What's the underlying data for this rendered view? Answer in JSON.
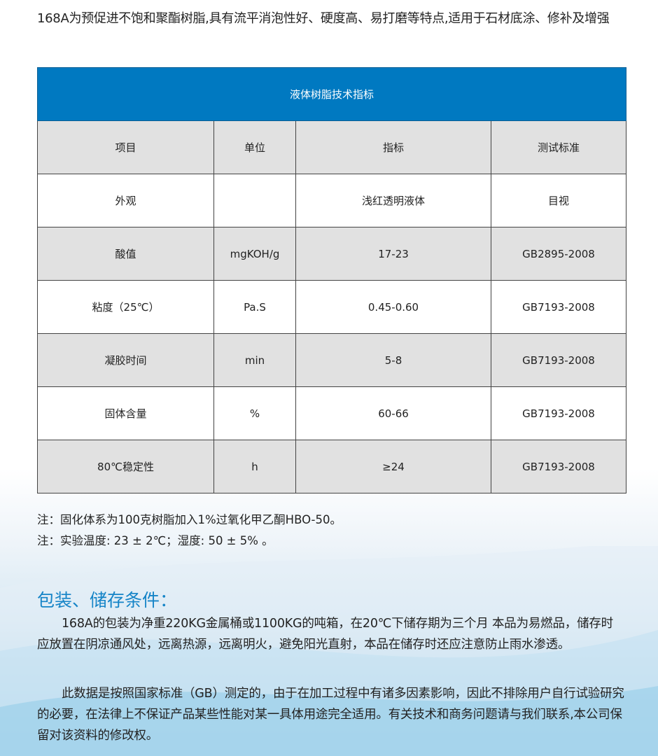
{
  "intro": "168A为预促进不饱和聚酯树脂,具有流平消泡性好、硬度高、易打磨等特点,适用于石材底涂、修补及增强",
  "table": {
    "title": "液体树脂技术指标",
    "headers": [
      "项目",
      "单位",
      "指标",
      "测试标准"
    ],
    "rows": [
      [
        "外观",
        "",
        "浅红透明液体",
        "目视"
      ],
      [
        "酸值",
        "mgKOH/g",
        "17-23",
        "GB2895-2008"
      ],
      [
        "粘度（25℃）",
        "Pa.S",
        "0.45-0.60",
        "GB7193-2008"
      ],
      [
        "凝胶时间",
        "min",
        "5-8",
        "GB7193-2008"
      ],
      [
        "固体含量",
        "%",
        "60-66",
        "GB7193-2008"
      ],
      [
        "80℃稳定性",
        "h",
        "≥24",
        "GB7193-2008"
      ]
    ],
    "header_color": "#0079c1"
  },
  "notes": [
    "注：固化体系为100克树脂加入1%过氧化甲乙酮HBO-50。",
    "注：实验温度: 23 ± 2℃；湿度: 50 ± 5% 。"
  ],
  "packaging": {
    "title": "包装、储存条件：",
    "title_color": "#1584c7",
    "paragraphs": [
      "168A的包装为净重220KG金属桶或1100KG的吨箱，在20℃下储存期为三个月 本品为易燃品，储存时应放置在阴凉通风处，远离热源，远离明火，避免阳光直射，本品在储存时还应注意防止雨水渗透。",
      "此数据是按照国家标准（GB）测定的，由于在加工过程中有诸多因素影响，因此不排除用户自行试验研究的必要，在法律上不保证产品某些性能对某一具体用途完全适用。有关技术和商务问题请与我们联系,本公司保留对该资料的修改权。"
    ]
  }
}
